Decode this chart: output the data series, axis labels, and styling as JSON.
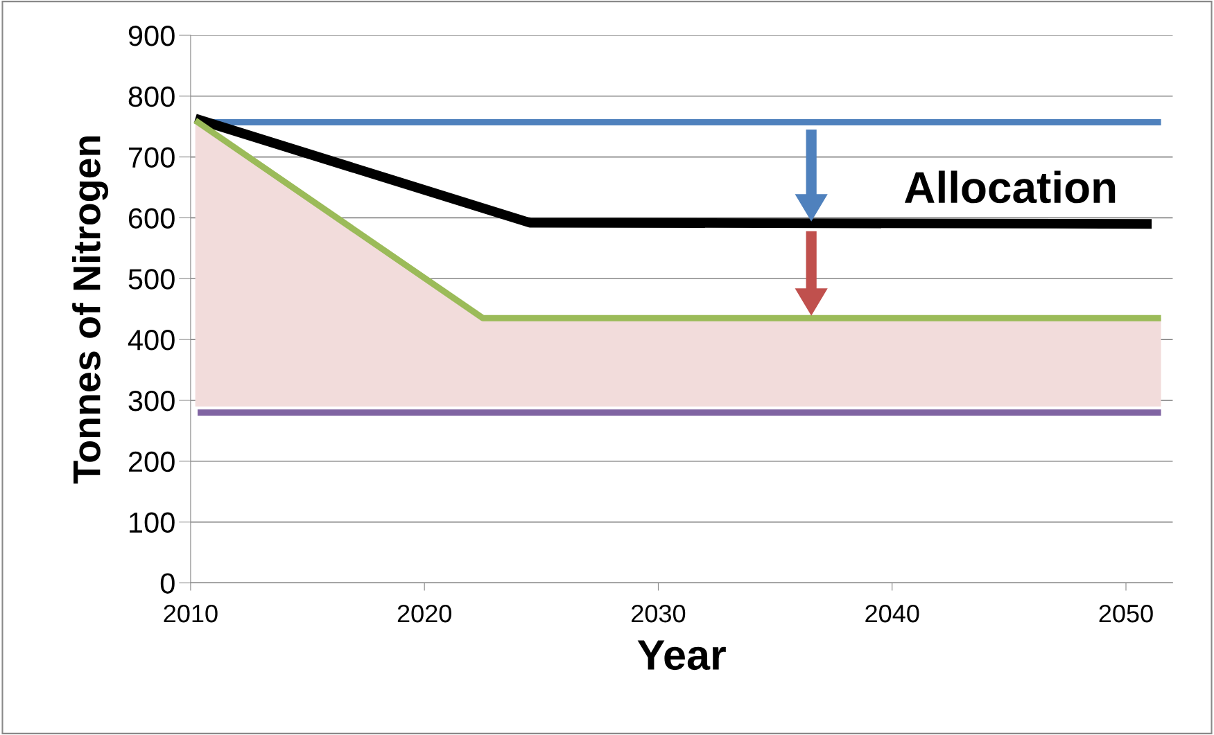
{
  "chart_data": {
    "type": "line",
    "xlabel": "Year",
    "ylabel": "Tonnes of Nitrogen",
    "series": [
      {
        "color": "#4f81bd",
        "x": [
          2010.3,
          2051.5
        ],
        "values": [
          757,
          757
        ]
      },
      {
        "color": "#000000",
        "x": [
          2010.2,
          2024.5,
          2051.1
        ],
        "values": [
          763,
          592,
          590
        ]
      },
      {
        "color": "#9bbb59",
        "x": [
          2010.2,
          2022.5,
          2051.5
        ],
        "values": [
          760,
          435,
          435
        ],
        "lower": [
          290,
          290,
          290
        ],
        "upper": [
          760,
          435,
          435
        ]
      },
      {
        "color": "#8064a2",
        "x": [
          2010.3,
          2051.5
        ],
        "values": [
          280,
          280
        ]
      }
    ],
    "annotations": [
      "Allocation"
    ],
    "xlim": [
      2010,
      2052
    ],
    "xticks": [
      2010,
      2020,
      2030,
      2040,
      2050
    ],
    "ylim": [
      0,
      900
    ],
    "yticks": [
      0,
      100,
      200,
      300,
      400,
      500,
      600,
      700,
      800,
      900
    ],
    "grid": "y",
    "legend": false
  }
}
